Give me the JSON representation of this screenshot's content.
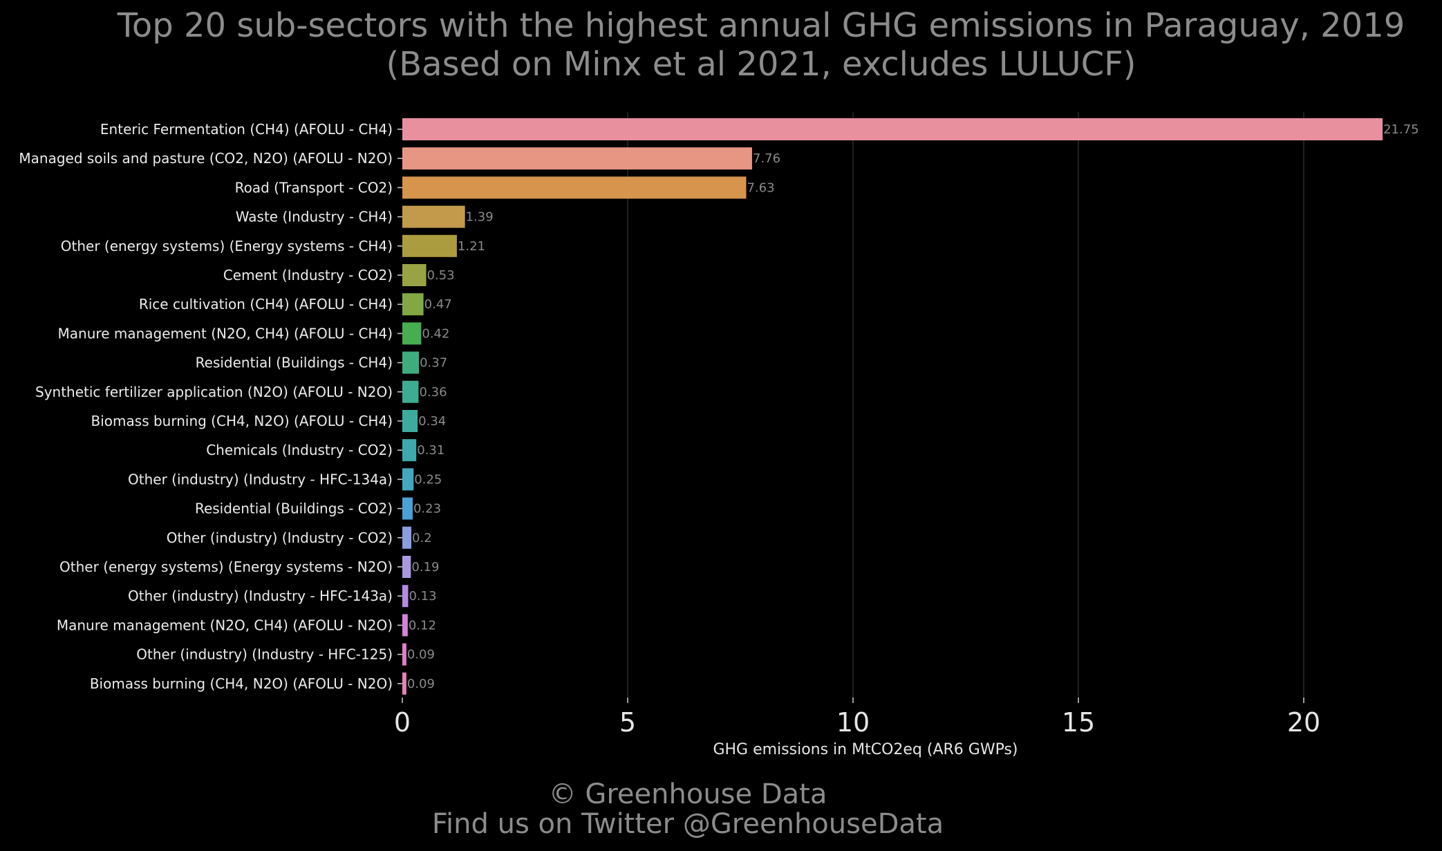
{
  "chart_data": {
    "type": "bar",
    "orientation": "horizontal",
    "title": "Top 20 sub-sectors with the highest annual GHG emissions in Paraguay, 2019",
    "subtitle": "(Based on Minx et al 2021, excludes LULUCF)",
    "xlabel": "GHG emissions in MtCO2eq (AR6 GWPs)",
    "ylabel": "",
    "xlim": [
      0,
      22.5
    ],
    "xticks": [
      0,
      5,
      10,
      15,
      20
    ],
    "grid": true,
    "legend": "none",
    "categories": [
      "Enteric Fermentation (CH4) (AFOLU - CH4)",
      "Managed soils and pasture (CO2, N2O) (AFOLU - N2O)",
      "Road (Transport - CO2)",
      "Waste (Industry - CH4)",
      "Other (energy systems) (Energy systems - CH4)",
      "Cement (Industry - CO2)",
      "Rice cultivation (CH4) (AFOLU - CH4)",
      "Manure management (N2O, CH4) (AFOLU - CH4)",
      "Residential (Buildings - CH4)",
      "Synthetic fertilizer application (N2O) (AFOLU - N2O)",
      "Biomass burning (CH4, N2O) (AFOLU - CH4)",
      "Chemicals (Industry - CO2)",
      "Other (industry) (Industry - HFC-134a)",
      "Residential (Buildings - CO2)",
      "Other (industry) (Industry - CO2)",
      "Other (energy systems) (Energy systems - N2O)",
      "Other (industry) (Industry - HFC-143a)",
      "Manure management (N2O, CH4) (AFOLU - N2O)",
      "Other (industry) (Industry - HFC-125)",
      "Biomass burning (CH4, N2O) (AFOLU - N2O)"
    ],
    "values": [
      21.75,
      7.76,
      7.63,
      1.39,
      1.21,
      0.53,
      0.47,
      0.42,
      0.37,
      0.36,
      0.34,
      0.31,
      0.25,
      0.23,
      0.2,
      0.19,
      0.13,
      0.12,
      0.09,
      0.09
    ],
    "value_labels": [
      "21.75",
      "7.76",
      "7.63",
      "1.39",
      "1.21",
      "0.53",
      "0.47",
      "0.42",
      "0.37",
      "0.36",
      "0.34",
      "0.31",
      "0.25",
      "0.23",
      "0.2",
      "0.19",
      "0.13",
      "0.12",
      "0.09",
      "0.09"
    ],
    "colors": [
      "#e8909e",
      "#e89684",
      "#d6944d",
      "#c39a4b",
      "#ab9c3f",
      "#99a344",
      "#82a843",
      "#46ad50",
      "#3fac7e",
      "#3eac92",
      "#3eab9f",
      "#3ea9ac",
      "#43a8bf",
      "#4aa1d4",
      "#8a9ee0",
      "#aa99e0",
      "#b68ae3",
      "#d383d9",
      "#df80c8",
      "#e484b8"
    ]
  },
  "footer": {
    "copyright": "© Greenhouse Data",
    "twitter": "Find us on Twitter @GreenhouseData"
  }
}
